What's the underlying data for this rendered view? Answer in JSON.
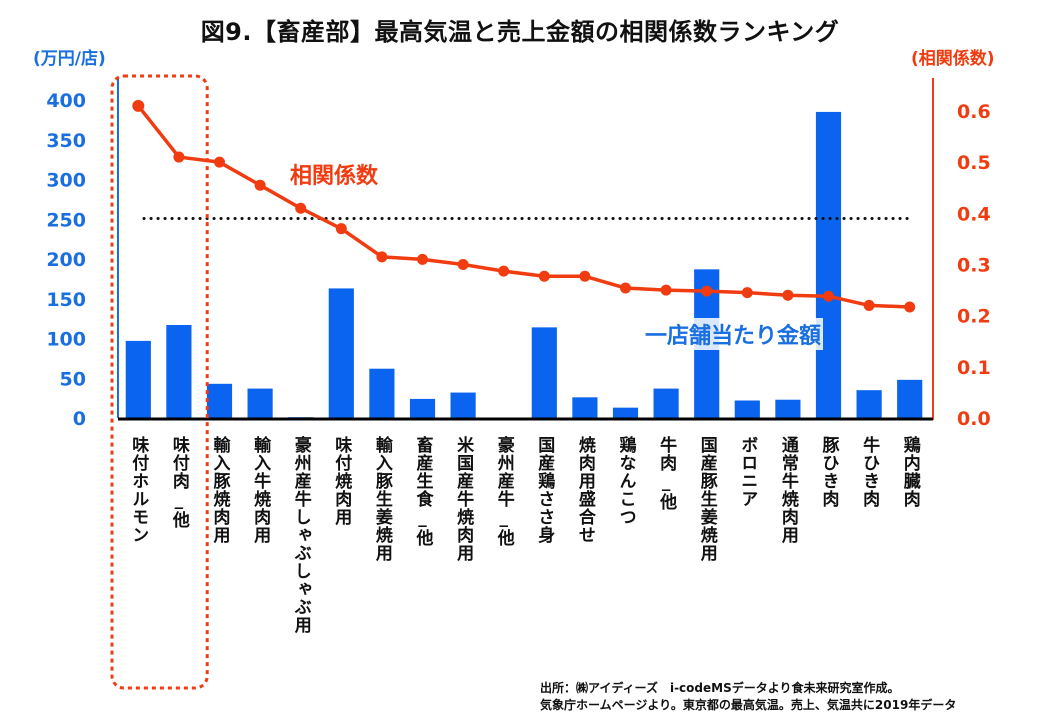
{
  "chart_data": {
    "type": "bar+line",
    "title": "図9.【畜産部】最高気温と売上金額の相関係数ランキング",
    "ylabel_left": "(万円/店)",
    "ylabel_right": "(相関係数)",
    "ylim_left": [
      0,
      400
    ],
    "yticks_left": [
      "0",
      "50",
      "100",
      "150",
      "200",
      "250",
      "300",
      "350",
      "400"
    ],
    "ylim_right": [
      0.0,
      0.6
    ],
    "yticks_right": [
      "0.0",
      "0.1",
      "0.2",
      "0.3",
      "0.4",
      "0.5",
      "0.6"
    ],
    "categories": [
      "味付ホルモン",
      "味付肉_他",
      "輸入豚焼肉用",
      "輸入牛焼肉用",
      "豪州産牛しゃぶしゃぶ用",
      "味付焼肉用",
      "輸入豚生姜焼用",
      "畜産生食_他",
      "米国産牛焼肉用",
      "豪州産牛_他",
      "国産鶏ささ身",
      "焼肉用盛合せ",
      "鶏なんこつ",
      "牛肉_他",
      "国産豚生姜焼用",
      "ボロニア",
      "通常牛焼肉用",
      "豚ひき肉",
      "牛ひき肉",
      "鶏内臓肉"
    ],
    "series": [
      {
        "name": "一店舗当たり金額",
        "type": "bar",
        "axis": "left",
        "color": "#0a64f0",
        "values": [
          97,
          117,
          43,
          37,
          1,
          163,
          62,
          24,
          32,
          0,
          114,
          26,
          13,
          37,
          187,
          22,
          23,
          385,
          35,
          48
        ]
      },
      {
        "name": "相関係数",
        "type": "line",
        "axis": "right",
        "color": "#f03c10",
        "values": [
          0.61,
          0.51,
          0.5,
          0.455,
          0.41,
          0.37,
          0.315,
          0.31,
          0.3,
          0.287,
          0.277,
          0.277,
          0.254,
          0.25,
          0.248,
          0.245,
          0.24,
          0.238,
          0.22,
          0.217
        ]
      }
    ],
    "reference_line": {
      "axis": "right",
      "value": 0.39,
      "style": "dotted",
      "color": "#111111"
    },
    "highlight_box": {
      "covers_categories": [
        "味付ホルモン",
        "味付肉_他"
      ],
      "style": "dotted",
      "color": "#f03c10"
    },
    "annotations": {
      "line_label": "相関係数",
      "bar_label": "一店舗当たり金額"
    },
    "grid": false,
    "source_lines": [
      "出所：㈱アイディーズ　i-codeMSデータより食未来研究室作成。",
      "気象庁ホームページより。東京都の最高気温。売上、気温共に2019年データ"
    ]
  }
}
